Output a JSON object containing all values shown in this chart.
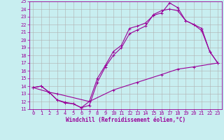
{
  "background_color": "#c8eef0",
  "grid_color": "#b0b0b0",
  "line_color": "#990099",
  "xlim": [
    -0.5,
    23.5
  ],
  "ylim": [
    11,
    25
  ],
  "xticks": [
    0,
    1,
    2,
    3,
    4,
    5,
    6,
    7,
    8,
    9,
    10,
    11,
    12,
    13,
    14,
    15,
    16,
    17,
    18,
    19,
    20,
    21,
    22,
    23
  ],
  "yticks": [
    11,
    12,
    13,
    14,
    15,
    16,
    17,
    18,
    19,
    20,
    21,
    22,
    23,
    24,
    25
  ],
  "xlabel": "Windchill (Refroidissement éolien,°C)",
  "line1_x": [
    0,
    1,
    2,
    3,
    4,
    5,
    6,
    7,
    8,
    9,
    10,
    11,
    12,
    13,
    14,
    15,
    16,
    17,
    18,
    19,
    20,
    21,
    22,
    23
  ],
  "line1_y": [
    13.8,
    14.0,
    13.2,
    12.2,
    11.8,
    11.7,
    11.2,
    12.0,
    15.0,
    16.7,
    18.5,
    19.3,
    21.5,
    21.8,
    22.2,
    23.2,
    23.5,
    24.8,
    24.2,
    22.5,
    22.0,
    21.5,
    18.5,
    17.0
  ],
  "line2_x": [
    0,
    1,
    2,
    3,
    4,
    5,
    6,
    7,
    8,
    9,
    10,
    11,
    12,
    13,
    14,
    15,
    16,
    17,
    18,
    19,
    20,
    21,
    22,
    23
  ],
  "line2_y": [
    13.8,
    14.0,
    13.2,
    12.2,
    11.9,
    11.7,
    11.2,
    11.5,
    14.5,
    16.5,
    18.0,
    19.0,
    20.8,
    21.3,
    21.8,
    23.3,
    23.8,
    24.0,
    23.8,
    22.5,
    22.0,
    21.2,
    18.5,
    17.0
  ],
  "line3_x": [
    0,
    2,
    3,
    7,
    10,
    13,
    16,
    18,
    20,
    23
  ],
  "line3_y": [
    13.8,
    13.2,
    13.0,
    12.0,
    13.5,
    14.5,
    15.5,
    16.2,
    16.5,
    17.0
  ],
  "tick_fontsize": 5,
  "xlabel_fontsize": 5.5
}
